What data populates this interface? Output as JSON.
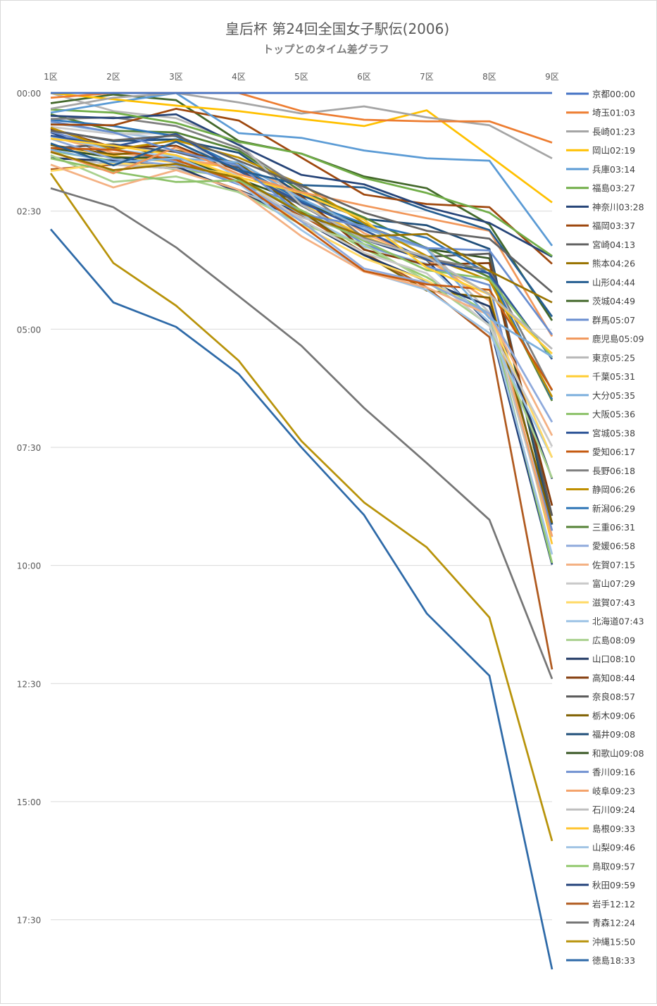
{
  "chart_data": {
    "type": "line",
    "title": "皇后杯 第24回全国女子駅伝(2006)",
    "subtitle": "トップとのタイム差グラフ",
    "xlabel": "",
    "ylabel": "",
    "categories": [
      "1区",
      "2区",
      "3区",
      "4区",
      "5区",
      "6区",
      "7区",
      "8区",
      "9区"
    ],
    "y_tick_labels": [
      "00:00",
      "02:30",
      "05:00",
      "07:30",
      "10:00",
      "12:30",
      "15:00",
      "17:30"
    ],
    "y_ticks_seconds": [
      0,
      150,
      300,
      450,
      600,
      750,
      900,
      1050
    ],
    "ylim_seconds": [
      0,
      1113
    ],
    "y_inverted": true,
    "grid": "horizontal",
    "legend_position": "right",
    "series": [
      {
        "name": "京都00:00",
        "color": "#4472c4",
        "values": [
          0,
          0,
          0,
          0,
          0,
          0,
          0,
          0,
          0
        ]
      },
      {
        "name": "埼玉01:03",
        "color": "#ed7d31",
        "values": [
          6,
          0,
          0,
          0,
          23,
          34,
          36,
          36,
          63
        ]
      },
      {
        "name": "長崎01:23",
        "color": "#a5a5a5",
        "values": [
          20,
          6,
          0,
          12,
          26,
          17,
          31,
          41,
          83
        ]
      },
      {
        "name": "岡山02:19",
        "color": "#ffc000",
        "values": [
          0,
          8,
          16,
          23,
          33,
          42,
          22,
          80,
          139
        ]
      },
      {
        "name": "兵庫03:14",
        "color": "#5b9bd5",
        "values": [
          25,
          12,
          0,
          51,
          57,
          73,
          83,
          86,
          194
        ]
      },
      {
        "name": "福島03:27",
        "color": "#70ad47",
        "values": [
          21,
          25,
          38,
          62,
          77,
          108,
          127,
          152,
          207
        ]
      },
      {
        "name": "神奈川03:28",
        "color": "#264478",
        "values": [
          29,
          32,
          27,
          66,
          104,
          116,
          145,
          165,
          208
        ]
      },
      {
        "name": "福岡03:37",
        "color": "#9e480e",
        "values": [
          40,
          41,
          20,
          35,
          82,
          129,
          141,
          145,
          217
        ]
      },
      {
        "name": "宮崎04:13",
        "color": "#636363",
        "values": [
          48,
          60,
          54,
          86,
          118,
          152,
          175,
          185,
          253
        ]
      },
      {
        "name": "熊本04:26",
        "color": "#997300",
        "values": [
          75,
          98,
          90,
          108,
          153,
          182,
          179,
          226,
          266
        ]
      },
      {
        "name": "山形04:44",
        "color": "#255e91",
        "values": [
          64,
          92,
          62,
          98,
          117,
          120,
          149,
          174,
          284
        ]
      },
      {
        "name": "茨城04:49",
        "color": "#43682b",
        "values": [
          13,
          2,
          9,
          61,
          77,
          106,
          121,
          167,
          289
        ]
      },
      {
        "name": "群馬05:07",
        "color": "#698ed0",
        "values": [
          36,
          50,
          74,
          92,
          154,
          169,
          197,
          200,
          307
        ]
      },
      {
        "name": "鹿児島05:09",
        "color": "#f1975a",
        "values": [
          74,
          102,
          69,
          103,
          126,
          143,
          159,
          175,
          309
        ]
      },
      {
        "name": "東京05:25",
        "color": "#b7b7b7",
        "values": [
          0,
          23,
          32,
          63,
          142,
          186,
          208,
          256,
          325
        ]
      },
      {
        "name": "千葉05:31",
        "color": "#ffcd33",
        "values": [
          58,
          67,
          79,
          107,
          127,
          161,
          222,
          256,
          331
        ]
      },
      {
        "name": "大分05:35",
        "color": "#7cafdd",
        "values": [
          72,
          88,
          83,
          88,
          134,
          172,
          198,
          286,
          335
        ]
      },
      {
        "name": "大阪05:36",
        "color": "#8cc168",
        "values": [
          83,
          100,
          113,
          111,
          149,
          188,
          225,
          236,
          336
        ]
      },
      {
        "name": "宮城05:38",
        "color": "#2e5597",
        "values": [
          54,
          68,
          52,
          99,
          139,
          174,
          212,
          229,
          338
        ]
      },
      {
        "name": "愛知06:17",
        "color": "#c55a11",
        "values": [
          70,
          72,
          85,
          113,
          168,
          226,
          243,
          250,
          377
        ]
      },
      {
        "name": "長野06:18",
        "color": "#7f7f7f",
        "values": [
          33,
          31,
          42,
          70,
          121,
          184,
          210,
          225,
          378
        ]
      },
      {
        "name": "静岡06:26",
        "color": "#bf8f00",
        "values": [
          44,
          72,
          60,
          82,
          116,
          165,
          207,
          238,
          386
        ]
      },
      {
        "name": "新潟06:29",
        "color": "#2e75b6",
        "values": [
          34,
          42,
          55,
          93,
          137,
          166,
          184,
          230,
          389
        ]
      },
      {
        "name": "三重06:31",
        "color": "#548235",
        "values": [
          27,
          48,
          50,
          73,
          125,
          158,
          197,
          234,
          391
        ]
      },
      {
        "name": "愛媛06:58",
        "color": "#8faadc",
        "values": [
          58,
          84,
          92,
          112,
          163,
          223,
          241,
          280,
          418
        ]
      },
      {
        "name": "佐賀07:15",
        "color": "#f4b183",
        "values": [
          91,
          120,
          98,
          123,
          182,
          227,
          247,
          282,
          435
        ]
      },
      {
        "name": "富山07:29",
        "color": "#c9c9c9",
        "values": [
          43,
          52,
          51,
          107,
          161,
          203,
          229,
          296,
          449
        ]
      },
      {
        "name": "滋賀07:43",
        "color": "#ffd966",
        "values": [
          99,
          89,
          93,
          104,
          168,
          210,
          238,
          282,
          463
        ]
      },
      {
        "name": "北海道07:43",
        "color": "#9dc3e6",
        "values": [
          55,
          72,
          81,
          115,
          174,
          226,
          250,
          305,
          463
        ]
      },
      {
        "name": "広島08:09",
        "color": "#a9d18e",
        "values": [
          79,
          113,
          106,
          126,
          167,
          192,
          239,
          295,
          489
        ]
      },
      {
        "name": "山口08:10",
        "color": "#203864",
        "values": [
          83,
          86,
          93,
          126,
          161,
          206,
          239,
          271,
          490
        ]
      },
      {
        "name": "高知08:44",
        "color": "#843c0c",
        "values": [
          45,
          69,
          67,
          99,
          131,
          199,
          218,
          216,
          524
        ]
      },
      {
        "name": "奈良08:57",
        "color": "#595959",
        "values": [
          70,
          65,
          75,
          95,
          143,
          185,
          208,
          204,
          537
        ]
      },
      {
        "name": "栃木09:06",
        "color": "#7f6000",
        "values": [
          66,
          78,
          73,
          89,
          150,
          205,
          251,
          260,
          546
        ]
      },
      {
        "name": "福井09:08",
        "color": "#1f4e79",
        "values": [
          47,
          61,
          59,
          76,
          130,
          160,
          168,
          198,
          548
        ]
      },
      {
        "name": "和歌山09:08",
        "color": "#375623",
        "values": [
          70,
          82,
          82,
          109,
          139,
          168,
          198,
          210,
          548
        ]
      },
      {
        "name": "香川09:16",
        "color": "#6f90d0",
        "values": [
          49,
          71,
          88,
          116,
          141,
          192,
          220,
          244,
          556
        ]
      },
      {
        "name": "岐阜09:23",
        "color": "#f4a36b",
        "values": [
          55,
          76,
          84,
          94,
          125,
          178,
          211,
          264,
          563
        ]
      },
      {
        "name": "石川09:24",
        "color": "#bfbfbf",
        "values": [
          81,
          91,
          96,
          124,
          158,
          181,
          196,
          279,
          564
        ]
      },
      {
        "name": "島根09:33",
        "color": "#ffc532",
        "values": [
          66,
          80,
          88,
          94,
          141,
          182,
          212,
          255,
          573
        ]
      },
      {
        "name": "山梨09:46",
        "color": "#a2c4e4",
        "values": [
          38,
          50,
          60,
          108,
          154,
          195,
          217,
          291,
          586
        ]
      },
      {
        "name": "鳥取09:57",
        "color": "#93c96f",
        "values": [
          74,
          86,
          97,
          107,
          152,
          198,
          234,
          280,
          597
        ]
      },
      {
        "name": "秋田09:59",
        "color": "#22407a",
        "values": [
          50,
          80,
          95,
          124,
          152,
          186,
          212,
          294,
          599
        ]
      },
      {
        "name": "岩手12:12",
        "color": "#b05a1f",
        "values": [
          97,
          91,
          96,
          123,
          155,
          203,
          247,
          310,
          732
        ]
      },
      {
        "name": "青森12:24",
        "color": "#767676",
        "values": [
          121,
          145,
          196,
          258,
          321,
          400,
          470,
          542,
          744
        ]
      },
      {
        "name": "沖縄15:50",
        "color": "#b8930a",
        "values": [
          102,
          216,
          270,
          340,
          442,
          520,
          577,
          666,
          950
        ]
      },
      {
        "name": "徳島18:33",
        "color": "#2e6aa8",
        "values": [
          173,
          266,
          297,
          357,
          450,
          536,
          661,
          740,
          1113
        ]
      }
    ]
  }
}
